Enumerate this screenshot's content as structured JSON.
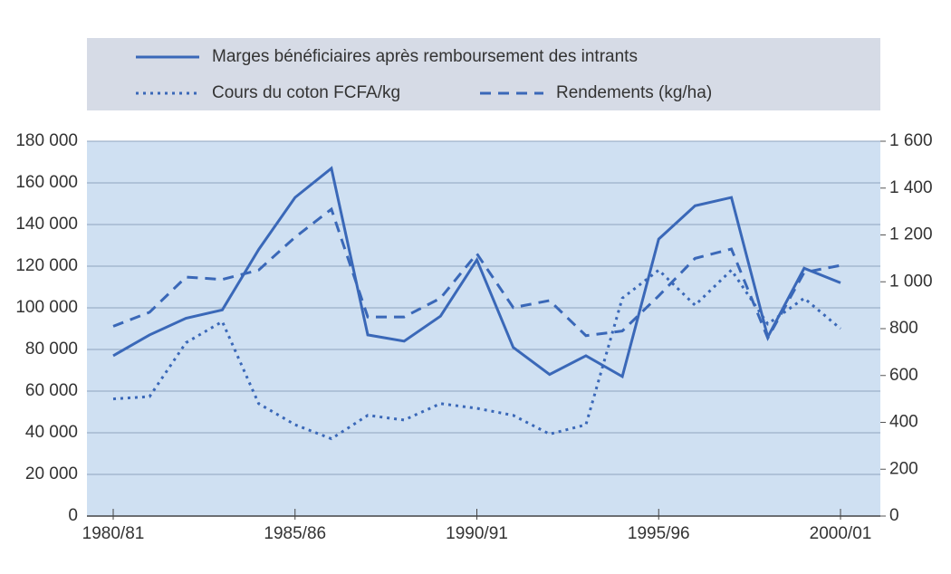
{
  "chart_data": {
    "type": "line",
    "categories": [
      "1980/81",
      null,
      null,
      null,
      null,
      "1985/86",
      null,
      null,
      null,
      null,
      "1990/91",
      null,
      null,
      null,
      null,
      "1995/96",
      null,
      null,
      null,
      null,
      "2000/01"
    ],
    "series": [
      {
        "name": "Marges bénéficiaires après remboursement des intrants",
        "color": "#3a68b8",
        "dash": "solid",
        "axis": "y",
        "values": [
          77000,
          87000,
          95000,
          99000,
          128000,
          153000,
          167000,
          87000,
          84000,
          96000,
          123000,
          81000,
          68000,
          77000,
          67000,
          133000,
          149000,
          153000,
          86000,
          119000,
          112000
        ]
      },
      {
        "name": "Cours du coton FCFA/kg",
        "color": "#3a68b8",
        "dash": "dotted",
        "axis": "y2",
        "values": [
          500,
          510,
          740,
          830,
          480,
          390,
          330,
          430,
          410,
          480,
          460,
          430,
          350,
          390,
          930,
          1050,
          900,
          1050,
          820,
          930,
          800
        ]
      },
      {
        "name": "Rendements (kg/ha)",
        "color": "#3a68b8",
        "dash": "dashed",
        "axis": "y2",
        "values": [
          810,
          870,
          1020,
          1010,
          1050,
          1190,
          1310,
          850,
          850,
          930,
          1120,
          890,
          920,
          770,
          790,
          940,
          1100,
          1140,
          760,
          1040,
          1070
        ]
      }
    ],
    "ylim": [
      0,
      180000
    ],
    "yticks": [
      0,
      {
        "value": 20000,
        "label": "20 000"
      },
      {
        "value": 40000,
        "label": "40 000"
      },
      {
        "value": 60000,
        "label": "60 000"
      },
      {
        "value": 80000,
        "label": "80 000"
      },
      {
        "value": 100000,
        "label": "100 000"
      },
      {
        "value": 120000,
        "label": "120 000"
      },
      {
        "value": 140000,
        "label": "140 000"
      },
      {
        "value": 160000,
        "label": "160 000"
      },
      {
        "value": 180000,
        "label": "180 000"
      }
    ],
    "y2lim": [
      0,
      1600
    ],
    "y2ticks": [
      0,
      200,
      400,
      600,
      800,
      {
        "value": 1000,
        "label": "1 000"
      },
      {
        "value": 1200,
        "label": "1 200"
      },
      {
        "value": 1400,
        "label": "1 400"
      },
      {
        "value": 1600,
        "label": "1 600"
      }
    ],
    "grid": true
  }
}
